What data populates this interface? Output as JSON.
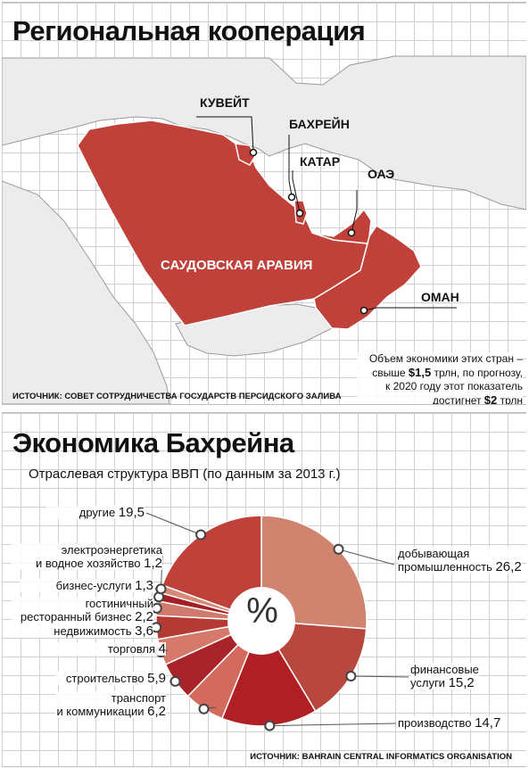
{
  "map": {
    "title": "Региональная кооперация",
    "countries": {
      "kuwait": "КУВЕЙТ",
      "bahrain": "БАХРЕЙН",
      "qatar": "КАТАР",
      "uae": "ОАЭ",
      "saudi": "САУДОВСКАЯ АРАВИЯ",
      "oman": "ОМАН"
    },
    "note": {
      "line1": "Объем экономики этих стран –",
      "line2a": "свыше ",
      "value1": "$1,5",
      "line2b": " трлн, по прогнозу,",
      "line3": "к 2020 году этот показатель",
      "line4a": "достигнет ",
      "value2": "$2",
      "line4b": " трлн"
    },
    "source": "Источник: Совет сотрудничества государств Персидского залива"
  },
  "economy": {
    "title": "Экономика Бахрейна",
    "subtitle": "Отраслевая структура ВВП (по данным за 2013 г.)",
    "center_symbol": "%",
    "source": "Источник: Bahrain Central Informatics Organisation"
  },
  "chart_data": {
    "type": "pie",
    "title": "Экономика Бахрейна",
    "subtitle": "Отраслевая структура ВВП (по данным за 2013 г.)",
    "unit": "%",
    "categories": [
      "добывающая промышленность",
      "финансовые услуги",
      "производство",
      "транспорт и коммуникации",
      "строительство",
      "торговля",
      "недвижимость",
      "гостиничный ресторанный бизнес",
      "бизнес-услуги",
      "электроэнергетика и водное хозяйство",
      "другие"
    ],
    "values": [
      26.2,
      15.2,
      14.7,
      6.2,
      5.9,
      4,
      3.6,
      2.2,
      1.3,
      1.2,
      19.5
    ],
    "labels": {
      "mining": {
        "l1": "добывающая",
        "l2": "промышленность",
        "v": "26,2"
      },
      "finance": {
        "l1": "финансовые",
        "l2": "услуги",
        "v": "15,2"
      },
      "manufacturing": {
        "l1": "производство",
        "v": "14,7"
      },
      "transport": {
        "l1": "транспорт",
        "l2": "и коммуникации",
        "v": "6,2"
      },
      "construction": {
        "l1": "строительство",
        "v": "5,9"
      },
      "trade": {
        "l1": "торговля",
        "v": "4"
      },
      "realestate": {
        "l1": "недвижимость",
        "v": "3,6"
      },
      "hotel": {
        "l1": "гостиничный",
        "l2": "ресторанный бизнес",
        "v": "2,2"
      },
      "business": {
        "l1": "бизнес-услуги",
        "v": "1,3"
      },
      "electricity": {
        "l1": "электроэнергетика",
        "l2": "и водное хозяйство",
        "v": "1,2"
      },
      "other": {
        "l1": "другие",
        "v": "19,5"
      }
    },
    "colors": [
      "#d08470",
      "#b8473d",
      "#b01f24",
      "#d26b5e",
      "#a8242a",
      "#d5796a",
      "#b53a34",
      "#cf7a6c",
      "#a51f25",
      "#d68a78",
      "#c0413a"
    ]
  }
}
